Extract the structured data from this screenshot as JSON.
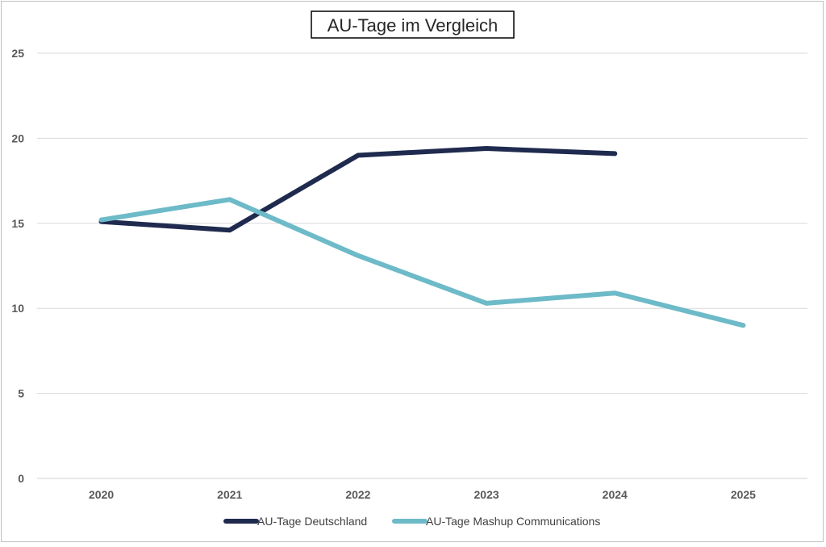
{
  "chart_data": {
    "type": "line",
    "title": "AU-Tage im Vergleich",
    "xlabel": "",
    "ylabel": "",
    "categories": [
      "2020",
      "2021",
      "2022",
      "2023",
      "2024",
      "2025"
    ],
    "ylim": [
      0,
      25
    ],
    "yticks": [
      "0",
      "5",
      "10",
      "15",
      "20",
      "25"
    ],
    "grid": true,
    "legend_position": "bottom",
    "series": [
      {
        "name": "AU-Tage Deutschland",
        "color": "#1f2a4f",
        "values": [
          15.1,
          14.6,
          19.0,
          19.4,
          19.1,
          null
        ]
      },
      {
        "name": "AU-Tage Mashup Communications",
        "color": "#6dbac8",
        "values": [
          15.2,
          16.4,
          13.1,
          10.3,
          10.9,
          9.0
        ]
      }
    ]
  }
}
